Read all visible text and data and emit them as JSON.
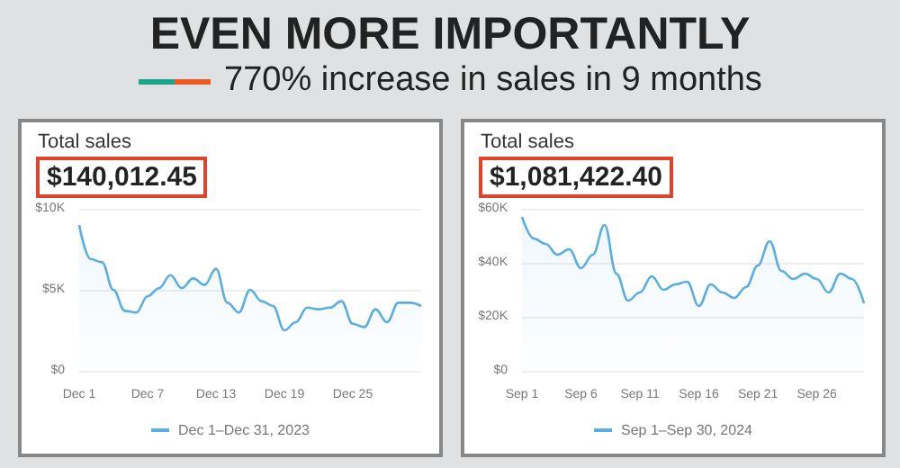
{
  "chart_data": [
    {
      "type": "other",
      "title": "EVEN MORE IMPORTANTLY",
      "subtitle": "770% increase in sales in 9 months"
    },
    {
      "type": "area",
      "title": "Total sales",
      "subtitle": "$140,012.45",
      "categories": [
        "Dec 1",
        null,
        null,
        null,
        null,
        null,
        "Dec 7",
        null,
        null,
        null,
        null,
        null,
        "Dec 13",
        null,
        null,
        null,
        null,
        null,
        "Dec 19",
        null,
        null,
        null,
        null,
        null,
        "Dec 25",
        null,
        null,
        null,
        null,
        null,
        null
      ],
      "series": [
        {
          "name": "Dec 1–Dec 31, 2023",
          "color": "#5aaee0",
          "values": [
            9000,
            6900,
            6700,
            5000,
            3700,
            3600,
            4600,
            5100,
            5900,
            5100,
            5700,
            5300,
            6300,
            4200,
            3600,
            5000,
            4300,
            4000,
            2500,
            3000,
            3900,
            3800,
            3900,
            4300,
            2900,
            2700,
            3800,
            3000,
            4200,
            4200,
            4000
          ]
        }
      ],
      "ylim": [
        0,
        10000
      ],
      "yticks": [
        {
          "value": 0,
          "label": "$0"
        },
        {
          "value": 5000,
          "label": "$5K"
        },
        {
          "value": 10000,
          "label": "$10K"
        }
      ],
      "grid": "y",
      "legend": "bottom"
    },
    {
      "type": "area",
      "title": "Total sales",
      "subtitle": "$1,081,422.40",
      "categories": [
        "Sep 1",
        null,
        null,
        null,
        null,
        "Sep 6",
        null,
        null,
        null,
        null,
        "Sep 11",
        null,
        null,
        null,
        null,
        "Sep 16",
        null,
        null,
        null,
        null,
        "Sep 21",
        null,
        null,
        null,
        null,
        "Sep 26",
        null,
        null,
        null,
        null
      ],
      "series": [
        {
          "name": "Sep 1–Sep 30, 2024",
          "color": "#5aaee0",
          "values": [
            57000,
            49000,
            47000,
            43000,
            45000,
            38000,
            43000,
            54000,
            36000,
            26000,
            29000,
            35000,
            30000,
            32000,
            33000,
            24000,
            32000,
            29000,
            27000,
            31000,
            39000,
            48000,
            37000,
            34000,
            36000,
            34000,
            29000,
            36000,
            34000,
            25000
          ]
        }
      ],
      "ylim": [
        0,
        60000
      ],
      "yticks": [
        {
          "value": 0,
          "label": "$0"
        },
        {
          "value": 20000,
          "label": "$20K"
        },
        {
          "value": 40000,
          "label": "$40K"
        },
        {
          "value": 60000,
          "label": "$60K"
        }
      ],
      "grid": "y",
      "legend": "bottom"
    }
  ]
}
